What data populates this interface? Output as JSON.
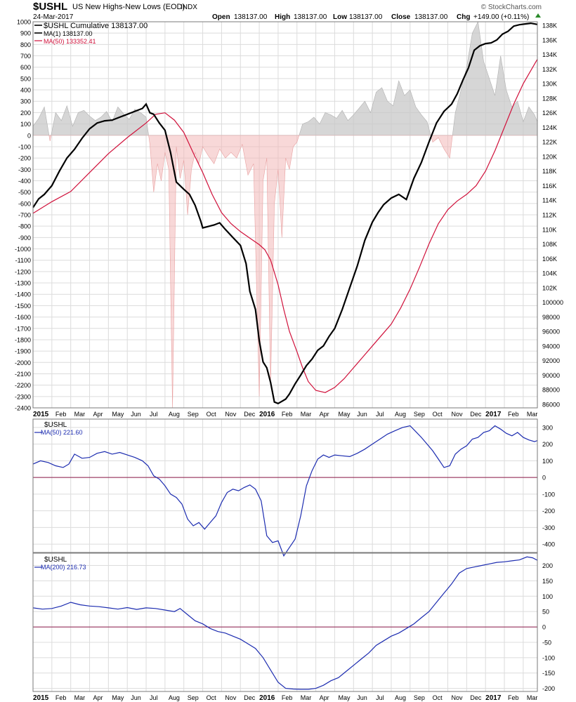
{
  "header": {
    "symbol": "$USHL",
    "name": "US New Highs-New Lows (EOD)",
    "exchange": "INDX",
    "date": "24-Mar-2017",
    "open_label": "Open",
    "open_value": "138137.00",
    "high_label": "High",
    "high_value": "138137.00",
    "low_label": "Low",
    "low_value": "138137.00",
    "close_label": "Close",
    "close_value": "138137.00",
    "chg_label": "Chg",
    "chg_value": "+149.00 (+0.11%)",
    "watermark": "© StockCharts.com"
  },
  "colors": {
    "cumulative": "#000000",
    "ma50_main": "#d0103a",
    "hist_positive": "#c8c8c8",
    "hist_negative": "#f3b8b8",
    "indicator_line": "#1c2cb0",
    "zero_line": "#8c1a4a",
    "chg_up": "#2a8a2a"
  },
  "x_axis": {
    "months": [
      "2015",
      "Feb",
      "Mar",
      "Apr",
      "May",
      "Jun",
      "Jul",
      "Aug",
      "Sep",
      "Oct",
      "Nov",
      "Dec",
      "2016",
      "Feb",
      "Mar",
      "Apr",
      "May",
      "Jun",
      "Jul",
      "Aug",
      "Sep",
      "Oct",
      "Nov",
      "Dec",
      "2017",
      "Feb",
      "Mar"
    ],
    "bold_labels": [
      "2015",
      "2016",
      "2017"
    ]
  },
  "chart_data": [
    {
      "type": "line",
      "title": "US New Highs-New Lows (EOD)",
      "legend": [
        {
          "label": "$USHL Cumulative 138137.00",
          "color": "#000000"
        },
        {
          "label": "MA(1) 138137.00",
          "color": "#000000"
        },
        {
          "label": "MA(50) 133352.41",
          "color": "#d0103a"
        }
      ],
      "legend_position": "top-left",
      "grid": true,
      "x_unit": "month index (0 = Jan 2015)",
      "xlim": [
        0,
        26.75
      ],
      "left_axis": {
        "range": [
          -2400,
          1000
        ],
        "ticks": [
          1000,
          900,
          800,
          700,
          600,
          500,
          400,
          300,
          200,
          100,
          0,
          -100,
          -200,
          -300,
          -400,
          -500,
          -600,
          -700,
          -800,
          -900,
          -1000,
          -1100,
          -1200,
          -1300,
          -1400,
          -1500,
          -1600,
          -1700,
          -1800,
          -1900,
          -2000,
          -2100,
          -2200,
          -2300,
          -2400
        ]
      },
      "right_axis": {
        "range": [
          85500,
          138500
        ],
        "ticks": [
          "138K",
          "136K",
          "134K",
          "132K",
          "130K",
          "128K",
          "126K",
          "124K",
          "122K",
          "120K",
          "118K",
          "116K",
          "114K",
          "112K",
          "110K",
          "108K",
          "106K",
          "104K",
          "102K",
          "100000",
          "98000",
          "96000",
          "94000",
          "92000",
          "90000",
          "88000",
          "86000"
        ],
        "tick_values": [
          138000,
          136000,
          134000,
          132000,
          130000,
          128000,
          126000,
          124000,
          122000,
          120000,
          118000,
          116000,
          114000,
          112000,
          110000,
          108000,
          106000,
          104000,
          102000,
          100000,
          98000,
          96000,
          94000,
          92000,
          90000,
          88000,
          86000
        ]
      },
      "series": [
        {
          "name": "$USHL",
          "kind": "histogram",
          "axis": "left",
          "x": [
            0,
            0.3,
            0.6,
            0.9,
            1.2,
            1.5,
            1.8,
            2.1,
            2.4,
            2.7,
            3.0,
            3.3,
            3.6,
            3.9,
            4.2,
            4.5,
            4.8,
            5.1,
            5.4,
            5.7,
            6.0,
            6.2,
            6.4,
            6.6,
            6.8,
            7.0,
            7.2,
            7.4,
            7.6,
            7.8,
            8.0,
            8.2,
            8.4,
            8.6,
            8.8,
            9.0,
            9.3,
            9.6,
            9.9,
            10.2,
            10.5,
            10.8,
            11.1,
            11.4,
            11.7,
            12.0,
            12.2,
            12.4,
            12.6,
            12.8,
            13.0,
            13.2,
            13.4,
            13.6,
            13.8,
            14.0,
            14.3,
            14.6,
            14.9,
            15.2,
            15.5,
            15.8,
            16.1,
            16.4,
            16.7,
            17.0,
            17.3,
            17.6,
            17.9,
            18.2,
            18.5,
            18.8,
            19.1,
            19.4,
            19.7,
            20.0,
            20.3,
            20.6,
            20.9,
            21.2,
            21.5,
            21.8,
            22.1,
            22.4,
            22.7,
            23.0,
            23.3,
            23.6,
            23.9,
            24.2,
            24.5,
            24.8,
            25.1,
            25.4,
            25.7,
            26.0,
            26.3,
            26.6,
            26.75
          ],
          "values": [
            80,
            150,
            250,
            -50,
            200,
            130,
            260,
            80,
            200,
            220,
            170,
            130,
            160,
            210,
            120,
            250,
            190,
            140,
            230,
            200,
            160,
            -80,
            -500,
            -250,
            -400,
            -150,
            -300,
            -2400,
            -100,
            -380,
            -220,
            -700,
            -300,
            -150,
            -250,
            -100,
            -180,
            -250,
            -120,
            -200,
            -150,
            -200,
            -80,
            -350,
            -250,
            -2300,
            -400,
            -200,
            -2200,
            -600,
            -300,
            -900,
            -200,
            -300,
            -100,
            -60,
            100,
            120,
            160,
            100,
            200,
            180,
            150,
            220,
            130,
            180,
            240,
            300,
            200,
            380,
            420,
            300,
            260,
            480,
            350,
            400,
            250,
            180,
            120,
            -60,
            -20,
            -120,
            -200,
            200,
            400,
            600,
            900,
            1000,
            650,
            500,
            350,
            700,
            400,
            250,
            300,
            120,
            250,
            180,
            120
          ]
        },
        {
          "name": "$USHL Cumulative",
          "kind": "line",
          "axis": "right",
          "x": [
            0,
            0.3,
            0.6,
            1.0,
            1.4,
            1.8,
            2.2,
            2.6,
            3.0,
            3.4,
            3.8,
            4.2,
            4.6,
            5.0,
            5.4,
            5.8,
            6.0,
            6.2,
            6.4,
            6.7,
            7.0,
            7.3,
            7.6,
            8.0,
            8.3,
            8.6,
            8.9,
            9.0,
            9.3,
            9.6,
            9.9,
            10.2,
            10.6,
            11.0,
            11.3,
            11.5,
            11.8,
            12.0,
            12.2,
            12.4,
            12.6,
            12.8,
            13.0,
            13.2,
            13.4,
            13.6,
            13.9,
            14.2,
            14.5,
            14.8,
            15.1,
            15.4,
            15.7,
            16.0,
            16.4,
            16.8,
            17.2,
            17.6,
            18.0,
            18.3,
            18.6,
            19.0,
            19.4,
            19.8,
            20.2,
            20.6,
            21.0,
            21.4,
            21.8,
            22.2,
            22.5,
            22.8,
            23.1,
            23.4,
            23.7,
            24.0,
            24.3,
            24.6,
            24.9,
            25.2,
            25.5,
            25.8,
            26.1,
            26.4,
            26.75
          ],
          "values": [
            113000,
            114200,
            114800,
            116000,
            118000,
            119800,
            121000,
            122500,
            123800,
            124600,
            124900,
            125000,
            125400,
            125800,
            126200,
            126600,
            127200,
            126000,
            125800,
            124600,
            123600,
            120500,
            116500,
            115500,
            114800,
            113300,
            111100,
            110200,
            110400,
            110600,
            110900,
            110000,
            108900,
            107800,
            105300,
            101500,
            99000,
            94700,
            91800,
            91000,
            89000,
            86300,
            86100,
            86400,
            86700,
            87400,
            88800,
            90000,
            91300,
            92200,
            93400,
            94000,
            95300,
            96400,
            99000,
            102000,
            105000,
            108500,
            111000,
            112300,
            113400,
            114300,
            114800,
            114100,
            117000,
            119200,
            122000,
            124600,
            126200,
            127200,
            128600,
            130500,
            132200,
            134600,
            135200,
            135500,
            135600,
            136000,
            136800,
            137200,
            137900,
            138100,
            138200,
            138300,
            138137
          ]
        },
        {
          "name": "MA(50)",
          "kind": "line",
          "axis": "right",
          "x": [
            0,
            1,
            2,
            3,
            4,
            5,
            6,
            6.5,
            7,
            7.5,
            8,
            8.5,
            9,
            9.5,
            10,
            10.5,
            11,
            11.5,
            12,
            12.3,
            12.6,
            13,
            13.3,
            13.6,
            14,
            14.3,
            14.6,
            15,
            15.5,
            16,
            16.5,
            17,
            17.5,
            18,
            18.5,
            19,
            19.5,
            20,
            20.5,
            21,
            21.5,
            22,
            22.5,
            23,
            23.5,
            24,
            24.5,
            25,
            25.5,
            26,
            26.75
          ],
          "values": [
            112200,
            113800,
            115200,
            117800,
            120400,
            122600,
            124600,
            125800,
            126000,
            125000,
            123300,
            120500,
            117800,
            114800,
            112300,
            110800,
            109700,
            108800,
            107900,
            107200,
            105800,
            102400,
            99000,
            96000,
            93200,
            91000,
            89100,
            87900,
            87600,
            88300,
            89500,
            91000,
            92500,
            94000,
            95500,
            97000,
            99200,
            101800,
            104800,
            108000,
            110800,
            112700,
            113900,
            114800,
            116000,
            118000,
            120800,
            124000,
            127200,
            130000,
            133352
          ]
        }
      ]
    },
    {
      "type": "line",
      "legend": [
        {
          "label": "$USHL",
          "color": "#000000"
        },
        {
          "label": "MA(50) 221.60",
          "color": "#1c2cb0"
        }
      ],
      "legend_position": "top-left",
      "grid": true,
      "ylim": [
        -450,
        350
      ],
      "yticks": [
        300,
        200,
        100,
        0,
        -100,
        -200,
        -300,
        -400
      ],
      "zero_line": true,
      "series": [
        {
          "name": "MA(50)",
          "x": [
            0,
            0.4,
            0.8,
            1.2,
            1.6,
            1.9,
            2.2,
            2.6,
            3.0,
            3.4,
            3.8,
            4.2,
            4.6,
            5.0,
            5.4,
            5.8,
            6.1,
            6.4,
            6.7,
            7.0,
            7.3,
            7.6,
            7.9,
            8.2,
            8.5,
            8.8,
            9.1,
            9.4,
            9.7,
            10.0,
            10.3,
            10.6,
            10.9,
            11.2,
            11.5,
            11.8,
            12.1,
            12.4,
            12.7,
            13.0,
            13.3,
            13.6,
            13.9,
            14.2,
            14.5,
            14.8,
            15.1,
            15.4,
            15.7,
            16.0,
            16.4,
            16.8,
            17.2,
            17.6,
            18.0,
            18.4,
            18.8,
            19.2,
            19.6,
            20.0,
            20.3,
            20.6,
            20.9,
            21.2,
            21.5,
            21.8,
            22.1,
            22.4,
            22.7,
            23.0,
            23.3,
            23.6,
            23.9,
            24.2,
            24.5,
            24.8,
            25.1,
            25.4,
            25.7,
            26.0,
            26.3,
            26.6,
            26.75
          ],
          "values": [
            80,
            100,
            90,
            70,
            60,
            80,
            140,
            115,
            120,
            145,
            155,
            140,
            150,
            135,
            120,
            100,
            70,
            10,
            -10,
            -50,
            -100,
            -120,
            -160,
            -250,
            -290,
            -270,
            -310,
            -270,
            -230,
            -150,
            -90,
            -70,
            -80,
            -60,
            -45,
            -70,
            -140,
            -350,
            -390,
            -380,
            -470,
            -420,
            -370,
            -230,
            -50,
            40,
            110,
            135,
            120,
            135,
            130,
            125,
            145,
            170,
            200,
            230,
            260,
            280,
            300,
            310,
            275,
            240,
            200,
            160,
            110,
            60,
            70,
            140,
            170,
            190,
            230,
            240,
            270,
            280,
            310,
            290,
            265,
            250,
            270,
            240,
            225,
            215,
            221
          ]
        }
      ]
    },
    {
      "type": "line",
      "legend": [
        {
          "label": "$USHL",
          "color": "#000000"
        },
        {
          "label": "MA(200) 216.73",
          "color": "#1c2cb0"
        }
      ],
      "legend_position": "top-left",
      "grid": true,
      "ylim": [
        -210,
        240
      ],
      "yticks": [
        200,
        150,
        100,
        50,
        0,
        -50,
        -100,
        -150,
        -200
      ],
      "zero_line": true,
      "series": [
        {
          "name": "MA(200)",
          "x": [
            0,
            0.5,
            1.0,
            1.5,
            2.0,
            2.5,
            3.0,
            3.5,
            4.0,
            4.5,
            5.0,
            5.5,
            6.0,
            6.5,
            7.0,
            7.5,
            7.8,
            8.2,
            8.6,
            9.0,
            9.4,
            9.8,
            10.2,
            10.6,
            11.0,
            11.4,
            11.8,
            12.2,
            12.6,
            13.0,
            13.4,
            13.8,
            14.2,
            14.6,
            15.0,
            15.4,
            15.8,
            16.2,
            16.6,
            17.0,
            17.4,
            17.8,
            18.2,
            18.6,
            19.0,
            19.4,
            19.8,
            20.2,
            20.6,
            21.0,
            21.4,
            21.8,
            22.2,
            22.6,
            23.0,
            23.4,
            23.8,
            24.2,
            24.6,
            25.0,
            25.4,
            25.8,
            26.2,
            26.5,
            26.75
          ],
          "values": [
            62,
            58,
            60,
            68,
            80,
            72,
            68,
            66,
            62,
            58,
            63,
            57,
            62,
            60,
            55,
            50,
            60,
            40,
            20,
            10,
            -5,
            -15,
            -20,
            -30,
            -40,
            -55,
            -70,
            -100,
            -140,
            -180,
            -200,
            -202,
            -203,
            -203,
            -200,
            -190,
            -175,
            -165,
            -145,
            -125,
            -105,
            -85,
            -60,
            -45,
            -30,
            -20,
            -5,
            10,
            30,
            50,
            80,
            110,
            140,
            175,
            190,
            195,
            200,
            205,
            210,
            212,
            215,
            218,
            228,
            225,
            217
          ]
        }
      ]
    }
  ]
}
